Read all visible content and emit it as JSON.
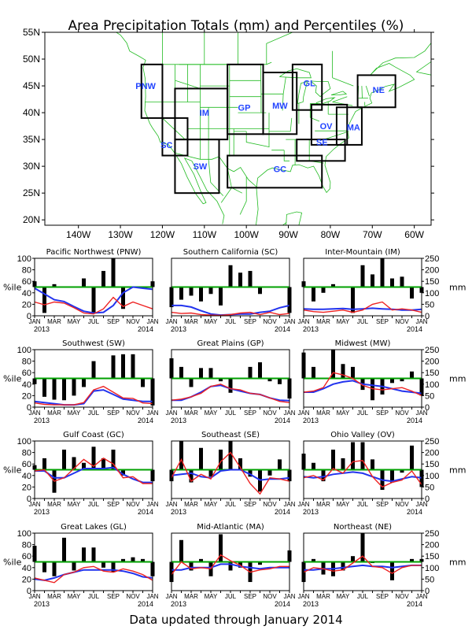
{
  "title": "Area Precipitation Totals (mm) and Percentiles (%)",
  "footer": "Data updated through January 2014",
  "colors": {
    "map_lines": "#22bb22",
    "region_box": "#000000",
    "region_label": "#2244ff",
    "bar": "#000000",
    "percentile_50_line": "#00a000",
    "red_line": "#ee2222",
    "blue_line": "#2233ee"
  },
  "map": {
    "lon_labels": [
      "140W",
      "130W",
      "120W",
      "110W",
      "100W",
      "90W",
      "80W",
      "70W",
      "60W"
    ],
    "lat_labels": [
      "55N",
      "50N",
      "45N",
      "40N",
      "35N",
      "30N",
      "25N",
      "20N"
    ],
    "region_labels": [
      "PNW",
      "SC",
      "IM",
      "SW",
      "GP",
      "MW",
      "GL",
      "OV",
      "SE",
      "GC",
      "MA",
      "NE"
    ]
  },
  "panel_axes": {
    "left_label": "%ile",
    "right_label": "mm",
    "left_ticks": [
      "0",
      "20",
      "40",
      "60",
      "80",
      "100"
    ],
    "right_ticks": [
      "0",
      "50",
      "100",
      "150",
      "200",
      "250"
    ],
    "x_ticks": [
      "JAN",
      "MAR",
      "MAY",
      "JUL",
      "SEP",
      "NOV",
      "JAN"
    ],
    "x_year_start": "2013",
    "x_year_end": "2014"
  },
  "chart_data": [
    {
      "type": "bar",
      "title": "Pacific Northwest (PNW)",
      "ylim": [
        0,
        100
      ],
      "y2lim": [
        0,
        250
      ],
      "x": [
        "Jan",
        "Feb",
        "Mar",
        "Apr",
        "May",
        "Jun",
        "Jul",
        "Aug",
        "Sep",
        "Oct",
        "Nov",
        "Dec",
        "Jan"
      ],
      "percentile": [
        60,
        5,
        55,
        50,
        50,
        65,
        5,
        78,
        100,
        12,
        50,
        48,
        60
      ],
      "red_mm": [
        60,
        48,
        60,
        55,
        35,
        12,
        8,
        30,
        80,
        40,
        60,
        45,
        30
      ],
      "blue_mm": [
        120,
        95,
        70,
        62,
        40,
        20,
        12,
        15,
        45,
        100,
        125,
        120,
        115
      ]
    },
    {
      "type": "bar",
      "title": "Southern California (SC)",
      "ylim": [
        0,
        100
      ],
      "y2lim": [
        0,
        250
      ],
      "x": [
        "Jan",
        "Feb",
        "Mar",
        "Apr",
        "May",
        "Jun",
        "Jul",
        "Aug",
        "Sep",
        "Oct",
        "Nov",
        "Dec",
        "Jan"
      ],
      "percentile": [
        15,
        28,
        35,
        25,
        38,
        18,
        88,
        75,
        78,
        38,
        50,
        50,
        5
      ],
      "red_mm": [
        15,
        10,
        12,
        5,
        3,
        2,
        5,
        12,
        15,
        5,
        15,
        5,
        10
      ],
      "blue_mm": [
        45,
        45,
        38,
        22,
        8,
        3,
        5,
        8,
        8,
        15,
        20,
        35,
        45
      ]
    },
    {
      "type": "bar",
      "title": "Inter-Mountain (IM)",
      "ylim": [
        0,
        100
      ],
      "y2lim": [
        0,
        250
      ],
      "x": [
        "Jan",
        "Feb",
        "Mar",
        "Apr",
        "May",
        "Jun",
        "Jul",
        "Aug",
        "Sep",
        "Oct",
        "Nov",
        "Dec",
        "Jan"
      ],
      "percentile": [
        60,
        25,
        40,
        55,
        50,
        5,
        88,
        72,
        100,
        65,
        68,
        30,
        40
      ],
      "red_mm": [
        25,
        18,
        15,
        20,
        25,
        15,
        25,
        50,
        60,
        25,
        30,
        25,
        15
      ],
      "blue_mm": [
        30,
        28,
        28,
        30,
        32,
        28,
        30,
        33,
        30,
        28,
        25,
        25,
        28
      ]
    },
    {
      "type": "bar",
      "title": "Southwest (SW)",
      "ylim": [
        0,
        100
      ],
      "y2lim": [
        0,
        250
      ],
      "x": [
        "Jan",
        "Feb",
        "Mar",
        "Apr",
        "May",
        "Jun",
        "Jul",
        "Aug",
        "Sep",
        "Oct",
        "Nov",
        "Dec",
        "Jan"
      ],
      "percentile": [
        40,
        18,
        13,
        12,
        20,
        35,
        80,
        50,
        90,
        92,
        92,
        35,
        3
      ],
      "red_mm": [
        18,
        12,
        10,
        10,
        10,
        20,
        75,
        90,
        65,
        40,
        38,
        18,
        15
      ],
      "blue_mm": [
        25,
        20,
        15,
        10,
        10,
        15,
        70,
        75,
        55,
        35,
        30,
        25,
        25
      ]
    },
    {
      "type": "bar",
      "title": "Great Plains (GP)",
      "ylim": [
        0,
        100
      ],
      "y2lim": [
        0,
        250
      ],
      "x": [
        "Jan",
        "Feb",
        "Mar",
        "Apr",
        "May",
        "Jun",
        "Jul",
        "Aug",
        "Sep",
        "Oct",
        "Nov",
        "Dec",
        "Jan"
      ],
      "percentile": [
        85,
        70,
        35,
        68,
        68,
        45,
        25,
        50,
        70,
        78,
        45,
        40,
        15
      ],
      "red_mm": [
        30,
        35,
        45,
        60,
        90,
        100,
        80,
        75,
        60,
        55,
        40,
        25,
        20
      ],
      "blue_mm": [
        30,
        30,
        45,
        65,
        90,
        95,
        80,
        70,
        60,
        55,
        40,
        30,
        28
      ]
    },
    {
      "type": "bar",
      "title": "Midwest (MW)",
      "ylim": [
        0,
        100
      ],
      "y2lim": [
        0,
        250
      ],
      "x": [
        "Jan",
        "Feb",
        "Mar",
        "Apr",
        "May",
        "Jun",
        "Jul",
        "Aug",
        "Sep",
        "Oct",
        "Nov",
        "Dec",
        "Jan"
      ],
      "percentile": [
        95,
        70,
        50,
        100,
        75,
        70,
        30,
        12,
        22,
        42,
        45,
        62,
        20
      ],
      "red_mm": [
        65,
        70,
        85,
        150,
        140,
        125,
        95,
        80,
        75,
        80,
        85,
        70,
        50
      ],
      "blue_mm": [
        65,
        65,
        80,
        100,
        110,
        115,
        100,
        95,
        90,
        80,
        70,
        65,
        60
      ]
    },
    {
      "type": "bar",
      "title": "Gulf Coast (GC)",
      "ylim": [
        0,
        100
      ],
      "y2lim": [
        0,
        250
      ],
      "x": [
        "Jan",
        "Feb",
        "Mar",
        "Apr",
        "May",
        "Jun",
        "Jul",
        "Aug",
        "Sep",
        "Oct",
        "Nov",
        "Dec",
        "Jan"
      ],
      "percentile": [
        58,
        70,
        10,
        85,
        72,
        62,
        90,
        70,
        85,
        40,
        50,
        50,
        30
      ],
      "red_mm": [
        120,
        125,
        75,
        90,
        130,
        170,
        140,
        175,
        150,
        90,
        95,
        65,
        65
      ],
      "blue_mm": [
        120,
        120,
        90,
        90,
        110,
        130,
        130,
        130,
        135,
        105,
        85,
        70,
        70
      ]
    },
    {
      "type": "bar",
      "title": "Southeast (SE)",
      "ylim": [
        0,
        100
      ],
      "y2lim": [
        0,
        250
      ],
      "x": [
        "Jan",
        "Feb",
        "Mar",
        "Apr",
        "May",
        "Jun",
        "Jul",
        "Aug",
        "Sep",
        "Oct",
        "Nov",
        "Dec",
        "Jan"
      ],
      "percentile": [
        30,
        100,
        28,
        88,
        38,
        85,
        100,
        70,
        38,
        12,
        40,
        68,
        30
      ],
      "red_mm": [
        90,
        170,
        75,
        105,
        85,
        160,
        200,
        135,
        65,
        20,
        90,
        85,
        75
      ],
      "blue_mm": [
        100,
        105,
        110,
        95,
        90,
        120,
        125,
        125,
        105,
        80,
        85,
        85,
        90
      ]
    },
    {
      "type": "bar",
      "title": "Ohio Valley (OV)",
      "ylim": [
        0,
        100
      ],
      "y2lim": [
        0,
        250
      ],
      "x": [
        "Jan",
        "Feb",
        "Mar",
        "Apr",
        "May",
        "Jun",
        "Jul",
        "Aug",
        "Sep",
        "Oct",
        "Nov",
        "Dec",
        "Jan"
      ],
      "percentile": [
        78,
        62,
        30,
        85,
        70,
        98,
        98,
        68,
        15,
        28,
        45,
        92,
        20
      ],
      "red_mm": [
        90,
        100,
        80,
        130,
        110,
        160,
        165,
        95,
        50,
        70,
        80,
        120,
        60
      ],
      "blue_mm": [
        95,
        90,
        95,
        105,
        110,
        115,
        110,
        95,
        80,
        75,
        85,
        95,
        90
      ]
    },
    {
      "type": "bar",
      "title": "Great Lakes (GL)",
      "ylim": [
        0,
        100
      ],
      "y2lim": [
        0,
        250
      ],
      "x": [
        "Jan",
        "Feb",
        "Mar",
        "Apr",
        "May",
        "Jun",
        "Jul",
        "Aug",
        "Sep",
        "Oct",
        "Nov",
        "Dec",
        "Jan"
      ],
      "percentile": [
        78,
        32,
        25,
        92,
        35,
        75,
        75,
        40,
        32,
        55,
        58,
        55,
        25
      ],
      "red_mm": [
        55,
        45,
        35,
        70,
        80,
        100,
        105,
        85,
        80,
        95,
        85,
        70,
        45
      ],
      "blue_mm": [
        50,
        45,
        55,
        70,
        80,
        90,
        90,
        90,
        90,
        85,
        75,
        60,
        55
      ]
    },
    {
      "type": "bar",
      "title": "Mid-Atlantic (MA)",
      "ylim": [
        0,
        100
      ],
      "y2lim": [
        0,
        250
      ],
      "x": [
        "Jan",
        "Feb",
        "Mar",
        "Apr",
        "May",
        "Jun",
        "Jul",
        "Aug",
        "Sep",
        "Oct",
        "Nov",
        "Dec",
        "Jan"
      ],
      "percentile": [
        15,
        88,
        35,
        55,
        25,
        98,
        35,
        40,
        15,
        45,
        50,
        50,
        70
      ],
      "red_mm": [
        70,
        125,
        95,
        100,
        95,
        155,
        130,
        110,
        80,
        90,
        95,
        105,
        105
      ],
      "blue_mm": [
        90,
        90,
        100,
        100,
        100,
        115,
        115,
        105,
        100,
        95,
        100,
        100,
        100
      ]
    },
    {
      "type": "bar",
      "title": "Northeast (NE)",
      "ylim": [
        0,
        100
      ],
      "y2lim": [
        0,
        250
      ],
      "x": [
        "Jan",
        "Feb",
        "Mar",
        "Apr",
        "May",
        "Jun",
        "Jul",
        "Aug",
        "Sep",
        "Oct",
        "Nov",
        "Dec",
        "Jan"
      ],
      "percentile": [
        15,
        55,
        28,
        25,
        35,
        60,
        100,
        48,
        50,
        18,
        50,
        55,
        55
      ],
      "red_mm": [
        80,
        100,
        95,
        85,
        90,
        120,
        150,
        105,
        100,
        75,
        100,
        110,
        110
      ],
      "blue_mm": [
        90,
        90,
        95,
        95,
        100,
        105,
        110,
        105,
        105,
        100,
        105,
        110,
        110
      ]
    }
  ]
}
